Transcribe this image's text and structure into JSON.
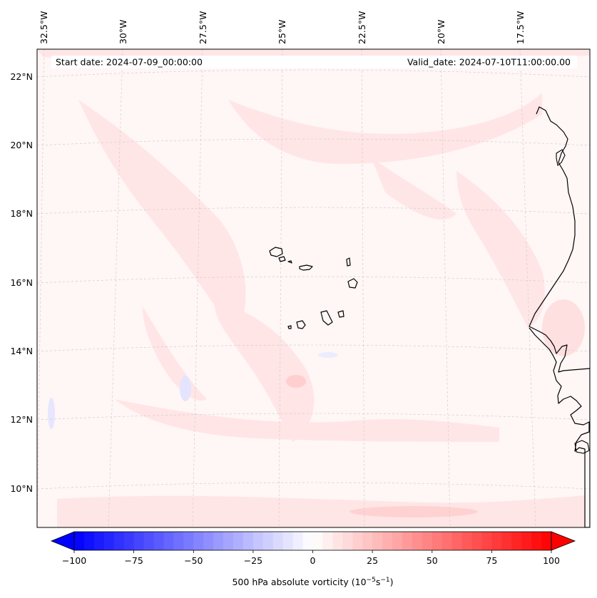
{
  "header": {
    "start_date": "Start date: 2024-07-09_00:00:00",
    "valid_date": "Valid_date: 2024-07-10T11:00:00.00"
  },
  "map": {
    "lon_labels": [
      "32.5°W",
      "30°W",
      "27.5°W",
      "25°W",
      "22.5°W",
      "20°W",
      "17.5°W"
    ],
    "lat_labels": [
      "22°N",
      "20°N",
      "18°N",
      "16°N",
      "14°N",
      "12°N",
      "10°N"
    ]
  },
  "colorbar": {
    "ticks": [
      "−100",
      "−75",
      "−50",
      "−25",
      "0",
      "25",
      "50",
      "75",
      "100"
    ],
    "label_main": "500 hPa absolute vorticity (10",
    "label_exp1": "−5",
    "label_mid": "s",
    "label_exp2": "−1",
    "label_end": ")",
    "min_color": "#0000ff",
    "mid_color": "#ffffff",
    "max_color": "#ff0000",
    "vmin": -100,
    "vmax": 100,
    "levels": 48
  },
  "colors": {
    "coastline": "#000000",
    "gridline": "#b0b0b0",
    "background_tint": "#fff5f5"
  }
}
